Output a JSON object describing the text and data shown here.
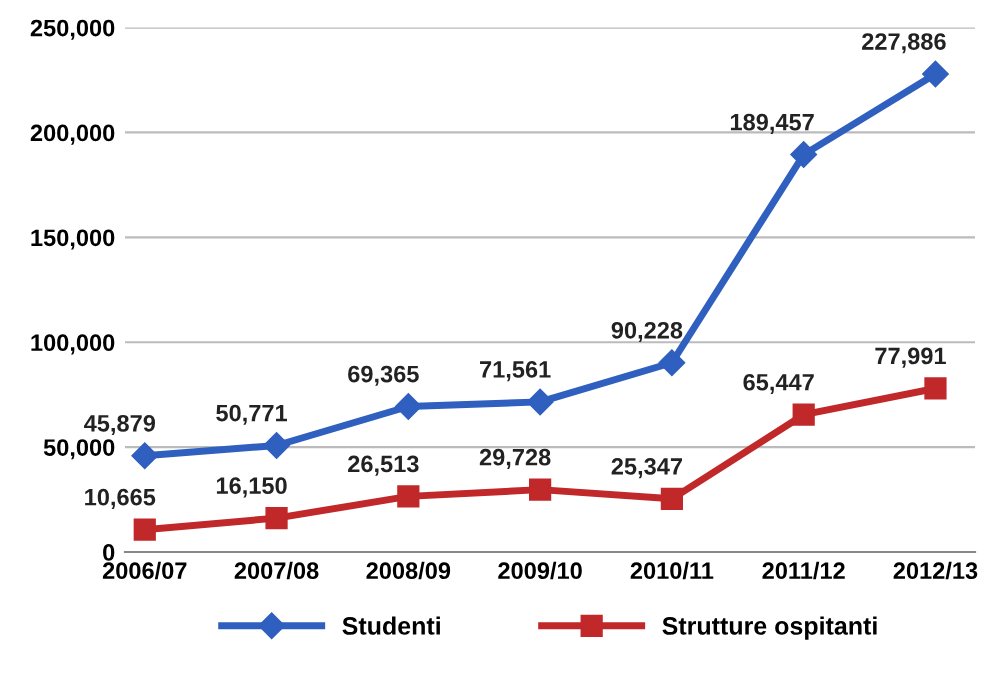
{
  "chart_data": {
    "type": "line",
    "categories": [
      "2006/07",
      "2007/08",
      "2008/09",
      "2009/10",
      "2010/11",
      "2011/12",
      "2012/13"
    ],
    "series": [
      {
        "name": "Studenti",
        "color": "#2f5fbf",
        "marker": "diamond",
        "values": [
          45879,
          50771,
          69365,
          71561,
          90228,
          189457,
          227886
        ],
        "value_labels": [
          "45,879",
          "50,771",
          "69,365",
          "71,561",
          "90,228",
          "189,457",
          "227,886"
        ]
      },
      {
        "name": "Strutture ospitanti",
        "color": "#c0282a",
        "marker": "square",
        "values": [
          10665,
          16150,
          26513,
          29728,
          25347,
          65447,
          77991
        ],
        "value_labels": [
          "10,665",
          "16,150",
          "26,513",
          "29,728",
          "25,347",
          "65,447",
          "77,991"
        ]
      }
    ],
    "ylim": [
      0,
      250000
    ],
    "yticks": [
      {
        "value": 0,
        "label": "0"
      },
      {
        "value": 50000,
        "label": "50,000"
      },
      {
        "value": 100000,
        "label": "100,000"
      },
      {
        "value": 150000,
        "label": "150,000"
      },
      {
        "value": 200000,
        "label": "200,000"
      },
      {
        "value": 250000,
        "label": "250,000"
      }
    ],
    "grid": "y",
    "legend": "bottom",
    "line_style": "solid"
  }
}
